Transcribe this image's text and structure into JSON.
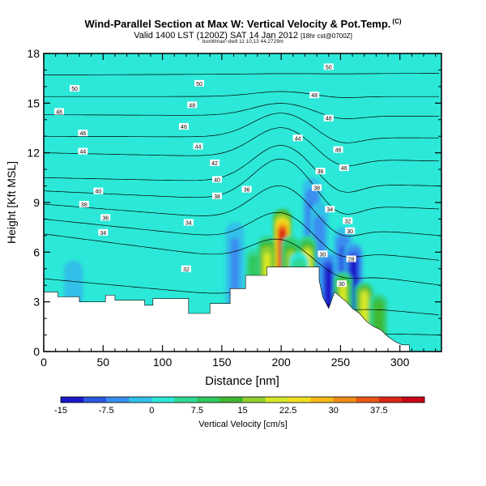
{
  "chart_data": {
    "type": "heatmap",
    "title": "Wind-Parallel Section at Max W: Vertical Velocity & Pot.Temp.",
    "title_mark": "(C)",
    "subtitle_main": "Valid 1400 LST (1200Z) SAT 14 Jan 2012",
    "subtitle_small": "[18hr cst@0700Z]",
    "creator_note": "boxWmax~dw9 11 10,13 44,2729m",
    "xlabel": "Distance [nm]",
    "ylabel": "Height [Kft MSL]",
    "xlim": [
      0,
      335
    ],
    "ylim": [
      0,
      18
    ],
    "x_ticks": [
      "0",
      "50",
      "100",
      "150",
      "200",
      "250",
      "300"
    ],
    "y_ticks": [
      "0",
      "3",
      "6",
      "9",
      "12",
      "15",
      "18"
    ],
    "colorbar_label": "Vertical Velocity [cm/s]",
    "colorbar_ticks": [
      "-15",
      "-7.5",
      "0",
      "7.5",
      "15",
      "22.5",
      "30",
      "37.5"
    ],
    "colorbar_range": [
      -15,
      45
    ],
    "colorbar_colors": [
      "#1a18c8",
      "#2a58e0",
      "#3a8ef0",
      "#30c0e8",
      "#2ce8d8",
      "#30d898",
      "#30c860",
      "#40b830",
      "#90d030",
      "#d8e828",
      "#f0e020",
      "#f4b818",
      "#f08c18",
      "#e85818",
      "#d82818",
      "#c80818"
    ],
    "background_color": "#2ce8d8",
    "terrain_color": "#ffffff",
    "terrain": [
      {
        "x": 0,
        "h": 3.6
      },
      {
        "x": 12,
        "h": 3.6
      },
      {
        "x": 12,
        "h": 3.3
      },
      {
        "x": 30,
        "h": 3.3
      },
      {
        "x": 30,
        "h": 3.0
      },
      {
        "x": 52,
        "h": 3.0
      },
      {
        "x": 52,
        "h": 3.4
      },
      {
        "x": 60,
        "h": 3.4
      },
      {
        "x": 60,
        "h": 3.1
      },
      {
        "x": 85,
        "h": 3.1
      },
      {
        "x": 85,
        "h": 2.8
      },
      {
        "x": 92,
        "h": 2.8
      },
      {
        "x": 92,
        "h": 3.2
      },
      {
        "x": 122,
        "h": 3.2
      },
      {
        "x": 122,
        "h": 2.3
      },
      {
        "x": 140,
        "h": 2.3
      },
      {
        "x": 140,
        "h": 2.9
      },
      {
        "x": 157,
        "h": 2.9
      },
      {
        "x": 157,
        "h": 3.8
      },
      {
        "x": 170,
        "h": 3.8
      },
      {
        "x": 170,
        "h": 4.6
      },
      {
        "x": 188,
        "h": 4.6
      },
      {
        "x": 188,
        "h": 5.1
      },
      {
        "x": 232,
        "h": 5.1
      },
      {
        "x": 232,
        "h": 4.3
      },
      {
        "x": 235,
        "h": 3.3
      },
      {
        "x": 240,
        "h": 2.6
      },
      {
        "x": 245,
        "h": 3.6
      },
      {
        "x": 250,
        "h": 3.3
      },
      {
        "x": 255,
        "h": 3.0
      },
      {
        "x": 260,
        "h": 2.6
      },
      {
        "x": 266,
        "h": 2.3
      },
      {
        "x": 272,
        "h": 1.8
      },
      {
        "x": 278,
        "h": 1.5
      },
      {
        "x": 284,
        "h": 1.3
      },
      {
        "x": 290,
        "h": 0.9
      },
      {
        "x": 296,
        "h": 0.6
      },
      {
        "x": 302,
        "h": 0.4
      },
      {
        "x": 308,
        "h": 0.4
      },
      {
        "x": 308,
        "h": 0
      }
    ],
    "updraft_cells": [
      {
        "x": 177,
        "h": 6.4,
        "w_max": 12
      },
      {
        "x": 188,
        "h": 7.0,
        "w_max": 24
      },
      {
        "x": 201,
        "h": 8.6,
        "w_max": 45
      },
      {
        "x": 208,
        "h": 7.0,
        "w_max": 20
      },
      {
        "x": 222,
        "h": 7.0,
        "w_max": 25
      },
      {
        "x": 252,
        "h": 4.8,
        "w_max": 22
      },
      {
        "x": 270,
        "h": 4.2,
        "w_max": 24
      },
      {
        "x": 282,
        "h": 3.5,
        "w_max": 15
      },
      {
        "x": 215,
        "h": 6.0,
        "w_max": 8
      }
    ],
    "downdraft_cells": [
      {
        "x": 161,
        "h": 7.8,
        "w_min": -6
      },
      {
        "x": 226,
        "h": 10.5,
        "w_min": -10
      },
      {
        "x": 232,
        "h": 9.0,
        "w_min": -7
      },
      {
        "x": 240,
        "h": 6.0,
        "w_min": -15
      },
      {
        "x": 252,
        "h": 7.5,
        "w_min": -10
      },
      {
        "x": 261,
        "h": 6.6,
        "w_min": -14
      },
      {
        "x": 25,
        "h": 5.5,
        "w_min": -4
      }
    ],
    "isentropes": [
      {
        "theta": "30",
        "y0": 1.5,
        "y1": 1.0
      },
      {
        "theta": "32",
        "y0": 4.4,
        "y1": 2.2
      },
      {
        "theta": "34",
        "y0": 7.1,
        "y1": 4.0
      },
      {
        "theta": "36",
        "y0": 8.0,
        "y1": 5.5
      },
      {
        "theta": "38",
        "y0": 8.9,
        "y1": 7.0
      },
      {
        "theta": "40",
        "y0": 9.7,
        "y1": 8.6
      },
      {
        "theta": "42",
        "y0": 10.5,
        "y1": 10.0
      },
      {
        "theta": "44",
        "y0": 12.0,
        "y1": 11.5
      },
      {
        "theta": "46",
        "y0": 13.0,
        "y1": 12.9
      },
      {
        "theta": "48",
        "y0": 14.3,
        "y1": 14.2
      },
      {
        "theta": "50",
        "y0": 15.4,
        "y1": 15.4
      },
      {
        "theta": "50",
        "y0": 16.7,
        "y1": 16.8
      }
    ],
    "contour_labels": [
      {
        "text": "50",
        "x": 26,
        "y": 15.9
      },
      {
        "text": "50",
        "x": 131,
        "y": 16.2
      },
      {
        "text": "50",
        "x": 240,
        "y": 17.2
      },
      {
        "text": "48",
        "x": 13,
        "y": 14.5
      },
      {
        "text": "48",
        "x": 125,
        "y": 14.9
      },
      {
        "text": "48",
        "x": 228,
        "y": 15.5
      },
      {
        "text": "48",
        "x": 240,
        "y": 14.1
      },
      {
        "text": "46",
        "x": 33,
        "y": 13.2
      },
      {
        "text": "46",
        "x": 118,
        "y": 13.6
      },
      {
        "text": "46",
        "x": 248,
        "y": 12.2
      },
      {
        "text": "46",
        "x": 253,
        "y": 11.1
      },
      {
        "text": "44",
        "x": 33,
        "y": 12.1
      },
      {
        "text": "44",
        "x": 130,
        "y": 12.4
      },
      {
        "text": "44",
        "x": 214,
        "y": 12.9
      },
      {
        "text": "42",
        "x": 144,
        "y": 11.4
      },
      {
        "text": "40",
        "x": 146,
        "y": 10.4
      },
      {
        "text": "40",
        "x": 46,
        "y": 9.7
      },
      {
        "text": "38",
        "x": 146,
        "y": 9.4
      },
      {
        "text": "38",
        "x": 34,
        "y": 8.9
      },
      {
        "text": "36",
        "x": 52,
        "y": 8.1
      },
      {
        "text": "36",
        "x": 171,
        "y": 9.8
      },
      {
        "text": "34",
        "x": 50,
        "y": 7.2
      },
      {
        "text": "34",
        "x": 122,
        "y": 7.8
      },
      {
        "text": "32",
        "x": 120,
        "y": 5.0
      },
      {
        "text": "30",
        "x": 235,
        "y": 5.9
      },
      {
        "text": "30",
        "x": 251,
        "y": 4.1
      },
      {
        "text": "28",
        "x": 259,
        "y": 5.6
      },
      {
        "text": "38",
        "x": 230,
        "y": 9.9
      },
      {
        "text": "36",
        "x": 233,
        "y": 10.9
      },
      {
        "text": "34",
        "x": 241,
        "y": 8.6
      },
      {
        "text": "32",
        "x": 256,
        "y": 7.9
      },
      {
        "text": "30",
        "x": 258,
        "y": 7.3
      }
    ]
  }
}
